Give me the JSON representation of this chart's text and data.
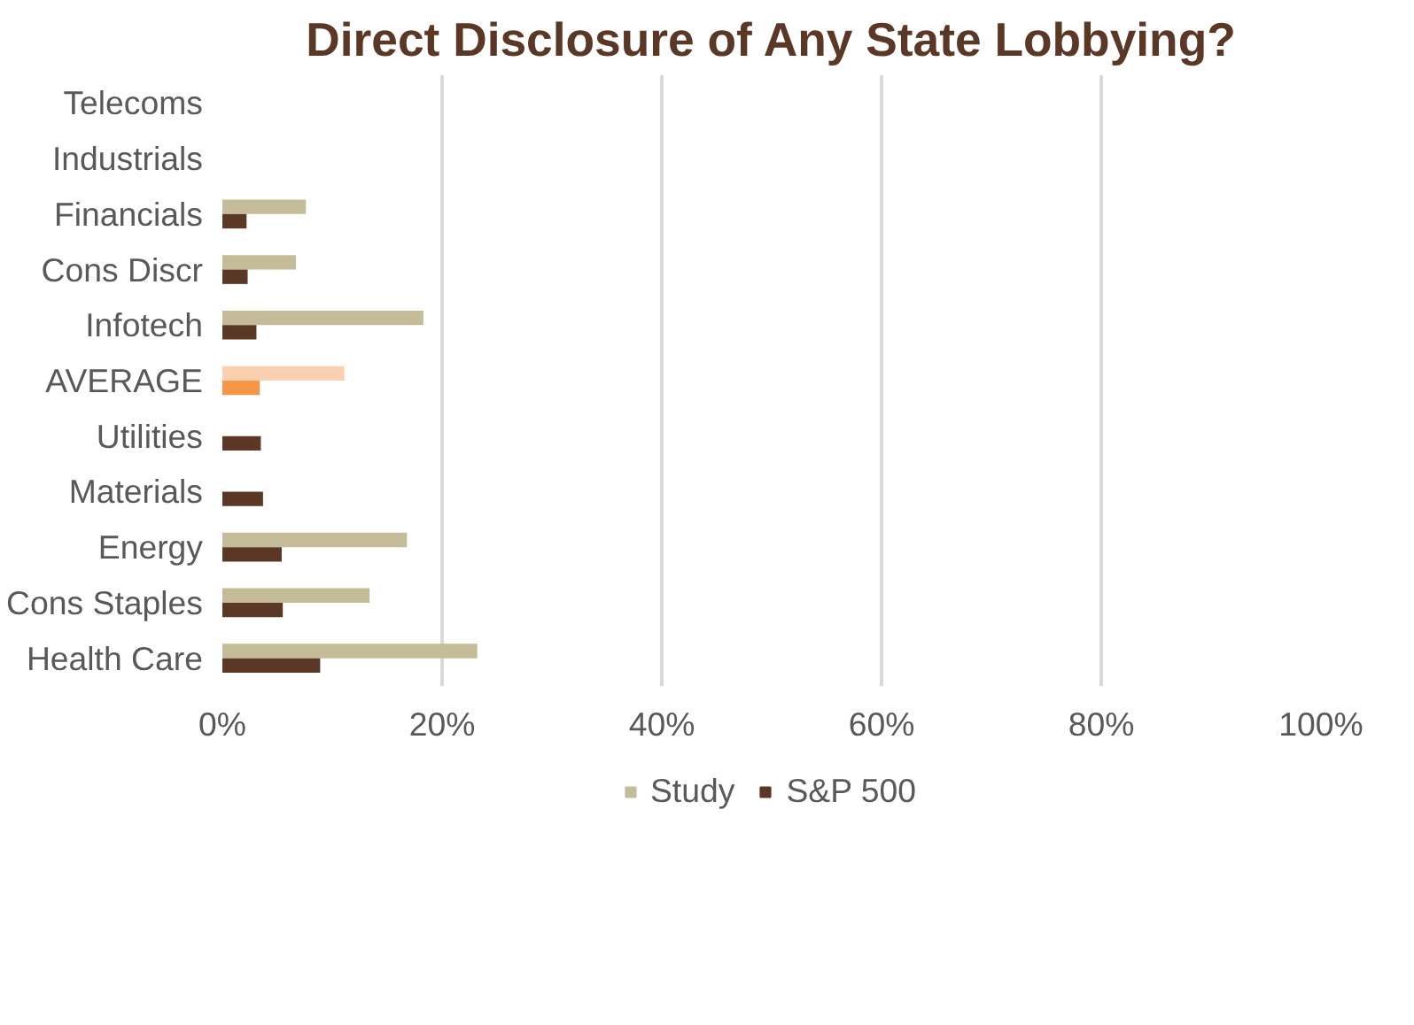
{
  "chart_data": {
    "type": "bar",
    "orientation": "horizontal",
    "title": "Direct Disclosure of Any State Lobbying?",
    "categories": [
      "Telecoms",
      "Industrials",
      "Financials",
      "Cons Discr",
      "Infotech",
      "AVERAGE",
      "Utilities",
      "Materials",
      "Energy",
      "Cons Staples",
      "Health Care"
    ],
    "series": [
      {
        "name": "Study",
        "color": "#c4bc98",
        "colors": [
          "#c4bc98",
          "#c4bc98",
          "#c4bc98",
          "#c4bc98",
          "#c4bc98",
          "#fbd0b0",
          "#c4bc98",
          "#c4bc98",
          "#c4bc98",
          "#c4bc98",
          "#c4bc98"
        ],
        "values": [
          0,
          0,
          7.6,
          6.7,
          18.3,
          11.1,
          0,
          0,
          16.8,
          13.4,
          23.2
        ]
      },
      {
        "name": "S&P 500",
        "color": "#5a3825",
        "colors": [
          "#5a3825",
          "#5a3825",
          "#5a3825",
          "#5a3825",
          "#5a3825",
          "#f79646",
          "#5a3825",
          "#5a3825",
          "#5a3825",
          "#5a3825",
          "#5a3825"
        ],
        "values": [
          0,
          0,
          2.2,
          2.3,
          3.1,
          3.4,
          3.5,
          3.7,
          5.4,
          5.5,
          8.9
        ]
      }
    ],
    "xlim": [
      0,
      100
    ],
    "xticks": [
      {
        "value": 0,
        "label": "0%"
      },
      {
        "value": 20,
        "label": "20%"
      },
      {
        "value": 40,
        "label": "40%"
      },
      {
        "value": 60,
        "label": "60%"
      },
      {
        "value": 80,
        "label": "80%"
      },
      {
        "value": 100,
        "label": "100%"
      }
    ],
    "grid": "x",
    "legend": "bottom"
  }
}
